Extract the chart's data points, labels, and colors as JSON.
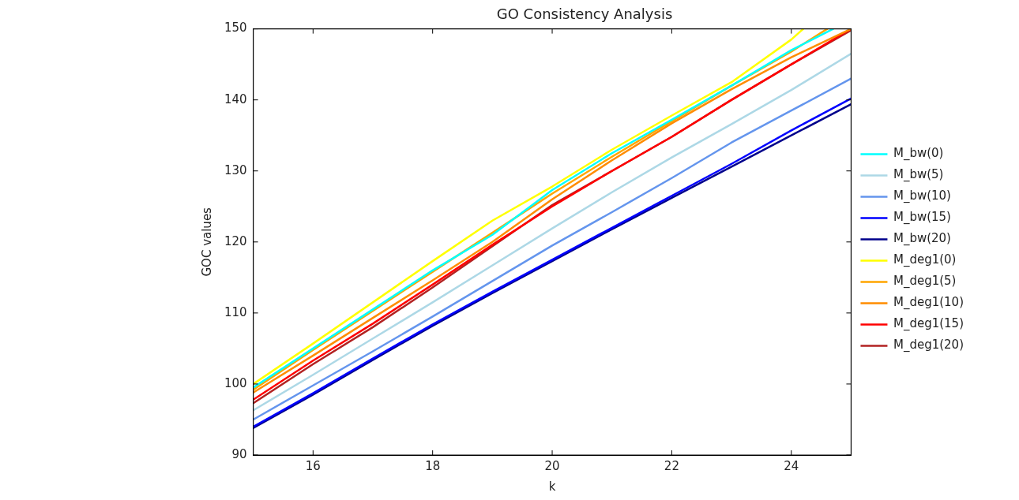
{
  "chart_data": {
    "type": "line",
    "title": "GO Consistency Analysis",
    "xlabel": "k",
    "ylabel": "GOC values",
    "x": [
      15,
      16,
      17,
      18,
      19,
      20,
      21,
      22,
      23,
      24,
      25
    ],
    "xlim": [
      15,
      25
    ],
    "xticks": [
      16,
      18,
      20,
      22,
      24
    ],
    "ylim": [
      90,
      150
    ],
    "yticks": [
      90,
      100,
      110,
      120,
      130,
      140,
      150
    ],
    "grid": false,
    "legend": "right",
    "series": [
      {
        "name": "M_bw(0)",
        "color": "#00ffff",
        "x": [
          15,
          16,
          17,
          18,
          19,
          20,
          21,
          22,
          23,
          24,
          24.7
        ],
        "values": [
          99.5,
          105,
          110.5,
          116,
          121,
          127.3,
          132.5,
          137.2,
          142,
          147,
          150
        ]
      },
      {
        "name": "M_bw(5)",
        "color": "#add8e6",
        "values": [
          96.3,
          101.3,
          106.4,
          111.5,
          116.7,
          121.9,
          127,
          131.9,
          136.6,
          141.4,
          146.5
        ]
      },
      {
        "name": "M_bw(10)",
        "color": "#6495ed",
        "values": [
          95,
          99.8,
          104.6,
          109.5,
          114.5,
          119.5,
          124.2,
          129,
          134,
          138.5,
          143
        ]
      },
      {
        "name": "M_bw(15)",
        "color": "#0000ff",
        "values": [
          94,
          98.7,
          103.6,
          108.4,
          113,
          117.5,
          122,
          126.5,
          131,
          135.7,
          140.2
        ]
      },
      {
        "name": "M_bw(20)",
        "color": "#00008b",
        "values": [
          93.8,
          98.5,
          103.4,
          108.2,
          112.8,
          117.3,
          121.8,
          126.2,
          130.6,
          135,
          139.4
        ]
      },
      {
        "name": "M_deg1(0)",
        "color": "#ffff00",
        "x": [
          15,
          16,
          17,
          18,
          19,
          20,
          21,
          22,
          23,
          24,
          24.2
        ],
        "values": [
          100,
          105.7,
          111.5,
          117.3,
          123,
          127.8,
          133,
          137.8,
          142.5,
          148.5,
          150
        ]
      },
      {
        "name": "M_deg1(5)",
        "color": "#ffa500",
        "x": [
          15,
          16,
          17,
          18,
          19,
          20,
          21,
          22,
          23,
          24,
          24.6
        ],
        "values": [
          99.2,
          104.8,
          110.3,
          115.8,
          121.3,
          126.8,
          132,
          137,
          142,
          146.8,
          150
        ]
      },
      {
        "name": "M_deg1(10)",
        "color": "#ff8c00",
        "values": [
          98.8,
          104,
          109.3,
          114.6,
          120,
          126,
          131.5,
          136.7,
          141.5,
          146,
          150
        ]
      },
      {
        "name": "M_deg1(15)",
        "color": "#ff0000",
        "values": [
          97.8,
          103.3,
          108.5,
          114,
          119.6,
          125,
          130,
          134.8,
          140,
          145,
          150
        ]
      },
      {
        "name": "M_deg1(20)",
        "color": "#b22222",
        "values": [
          97.3,
          102.8,
          108,
          113.6,
          119.4,
          125.2,
          130,
          134.8,
          140,
          145,
          149.8
        ]
      }
    ]
  }
}
